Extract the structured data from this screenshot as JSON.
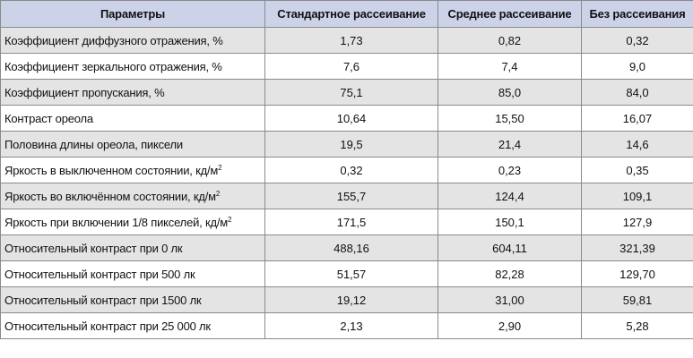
{
  "table": {
    "headers": {
      "param": "Параметры",
      "standard": "Стандартное рассеивание",
      "medium": "Среднее рассеивание",
      "none": "Без рассеивания"
    },
    "rows": [
      {
        "name": "Коэффициент диффузного отражения, %",
        "standard": "1,73",
        "medium": "0,82",
        "none": "0,32"
      },
      {
        "name": "Коэффициент зеркального отражения, %",
        "standard": "7,6",
        "medium": "7,4",
        "none": "9,0"
      },
      {
        "name": "Коэффициент пропускания, %",
        "standard": "75,1",
        "medium": "85,0",
        "none": "84,0"
      },
      {
        "name": "Контраст ореола",
        "standard": "10,64",
        "medium": "15,50",
        "none": "16,07"
      },
      {
        "name": "Половина длины ореола, пиксели",
        "standard": "19,5",
        "medium": "21,4",
        "none": "14,6"
      },
      {
        "name": "Яркость в выключенном состоянии, кд/м",
        "sup": "2",
        "standard": "0,32",
        "medium": "0,23",
        "none": "0,35"
      },
      {
        "name": "Яркость во включённом состоянии, кд/м",
        "sup": "2",
        "standard": "155,7",
        "medium": "124,4",
        "none": "109,1"
      },
      {
        "name": "Яркость при включении 1/8 пикселей, кд/м",
        "sup": "2",
        "standard": "171,5",
        "medium": "150,1",
        "none": "127,9"
      },
      {
        "name": "Относительный контраст при 0 лк",
        "standard": "488,16",
        "medium": "604,11",
        "none": "321,39"
      },
      {
        "name": "Относительный контраст при 500 лк",
        "standard": "51,57",
        "medium": "82,28",
        "none": "129,70"
      },
      {
        "name": "Относительный контраст при 1500 лк",
        "standard": "19,12",
        "medium": "31,00",
        "none": "59,81"
      },
      {
        "name": "Относительный контраст при 25 000 лк",
        "standard": "2,13",
        "medium": "2,90",
        "none": "5,28"
      }
    ]
  }
}
